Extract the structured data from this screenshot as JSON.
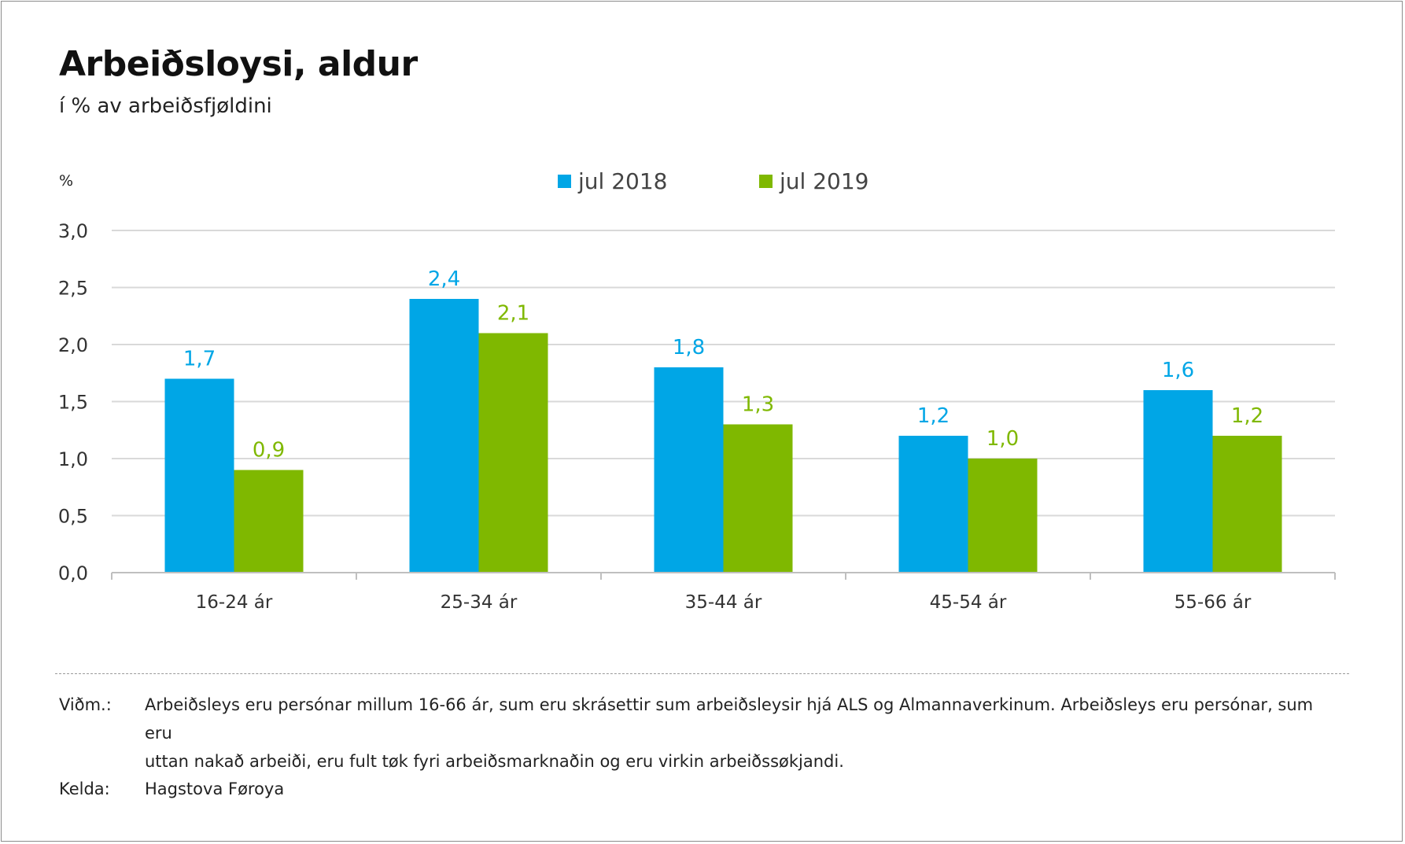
{
  "title": "Arbeiðsloysi, aldur",
  "subtitle": "í % av arbeiðsfjøldini",
  "notes": {
    "label": "Viðm.:",
    "line1": "Arbeiðsleys eru persónar millum 16-66 ár, sum eru skrásettir sum arbeiðsleysir hjá ALS og Almannaverkinum. Arbeiðsleys eru persónar, sum eru",
    "line2": "uttan nakað arbeiði, eru fult tøk fyri arbeiðsmarknaðin og eru virkin arbeiðssøkjandi."
  },
  "source": {
    "label": "Kelda:",
    "text": "Hagstova Føroya"
  },
  "chart_data": {
    "type": "bar",
    "title": "Arbeiðsloysi, aldur",
    "subtitle": "í % av arbeiðsfjøldini",
    "ylabel": "%",
    "xlabel": "",
    "ylim": [
      0,
      3.0
    ],
    "yticks": [
      "0,0",
      "0,5",
      "1,0",
      "1,5",
      "2,0",
      "2,5",
      "3,0"
    ],
    "grid": true,
    "legend_position": "top-center",
    "categories": [
      "16-24 ár",
      "25-34 ár",
      "35-44 ár",
      "45-54 ár",
      "55-66 ár"
    ],
    "series": [
      {
        "name": "jul 2018",
        "color": "#00a6e6",
        "values": [
          1.7,
          2.4,
          1.8,
          1.2,
          1.6
        ],
        "labels": [
          "1,7",
          "2,4",
          "1,8",
          "1,2",
          "1,6"
        ]
      },
      {
        "name": "jul 2019",
        "color": "#7fb800",
        "values": [
          0.9,
          2.1,
          1.3,
          1.0,
          1.2
        ],
        "labels": [
          "0,9",
          "2,1",
          "1,3",
          "1,0",
          "1,2"
        ]
      }
    ]
  }
}
